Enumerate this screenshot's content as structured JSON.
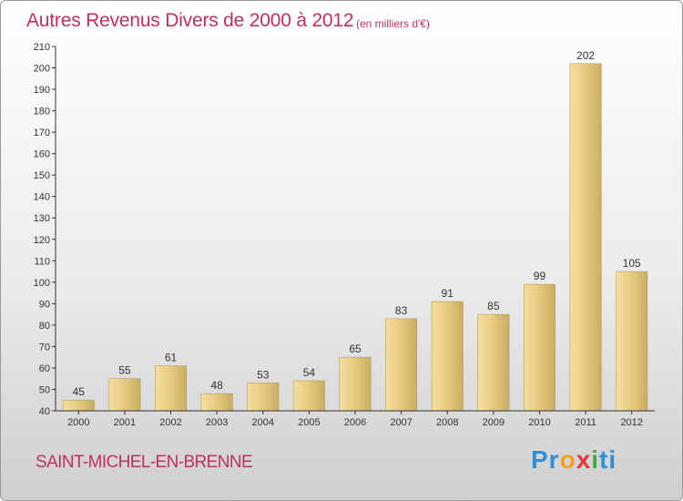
{
  "header": {
    "title": "Autres Revenus Divers de 2000 à 2012",
    "unit_note": "(en milliers d'€)"
  },
  "footer": {
    "town": "SAINT-MICHEL-EN-BRENNE",
    "logo_text": "Proxiti",
    "logo_parts": [
      "Pr",
      "o",
      "x",
      "i",
      "ti"
    ]
  },
  "colors": {
    "title": "#c0305a",
    "bar_light": "#f5dea0",
    "bar_dark": "#c8ad63",
    "axis": "#333333"
  },
  "chart_data": {
    "type": "bar",
    "title": "Autres Revenus Divers de 2000 à 2012",
    "xlabel": "",
    "ylabel": "",
    "categories": [
      "2000",
      "2001",
      "2002",
      "2003",
      "2004",
      "2005",
      "2006",
      "2007",
      "2008",
      "2009",
      "2010",
      "2011",
      "2012"
    ],
    "values": [
      45,
      55,
      61,
      48,
      53,
      54,
      65,
      83,
      91,
      85,
      99,
      202,
      105
    ],
    "ylim": [
      40,
      210
    ],
    "yticks": [
      40,
      50,
      60,
      70,
      80,
      90,
      100,
      110,
      120,
      130,
      140,
      150,
      160,
      170,
      180,
      190,
      200,
      210
    ],
    "grid": false,
    "data_labels": true
  }
}
